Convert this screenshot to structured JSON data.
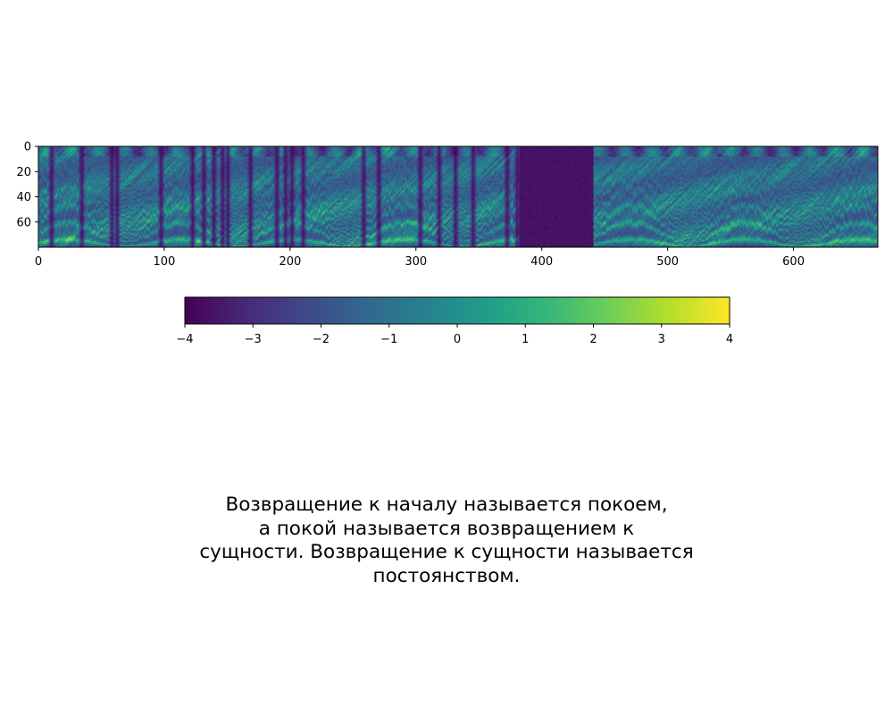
{
  "chart_data": {
    "type": "heatmap",
    "title": "",
    "xlabel": "",
    "ylabel": "",
    "xlim": [
      0,
      667
    ],
    "ylim": [
      80,
      0
    ],
    "x_ticks": [
      "0",
      "100",
      "200",
      "300",
      "400",
      "500",
      "600"
    ],
    "y_ticks": [
      "0",
      "20",
      "40",
      "60"
    ],
    "x_tick_values": [
      0,
      100,
      200,
      300,
      400,
      500,
      600
    ],
    "y_tick_values": [
      0,
      20,
      40,
      60
    ],
    "n_frames": 667,
    "n_bins": 80,
    "silent_frame_ranges": [
      [
        382,
        440
      ]
    ],
    "colormap": "viridis",
    "colorbar": {
      "orientation": "horizontal",
      "range": [
        -4,
        4
      ],
      "ticks": [
        "−4",
        "−3",
        "−2",
        "−1",
        "0",
        "1",
        "2",
        "3",
        "4"
      ],
      "tick_values": [
        -4,
        -3,
        -2,
        -1,
        0,
        1,
        2,
        3,
        4
      ]
    }
  },
  "caption": {
    "lines": [
      "Возвращение к началу называется покоем,",
      "а покой называется возвращением к",
      "сущности. Возвращение к сущности называется",
      "постоянством."
    ]
  },
  "colors": {
    "viridis": [
      "#440154",
      "#482878",
      "#3e4989",
      "#31688e",
      "#26828e",
      "#1f9e89",
      "#35b779",
      "#6ece58",
      "#b5de2b",
      "#fde725"
    ]
  }
}
